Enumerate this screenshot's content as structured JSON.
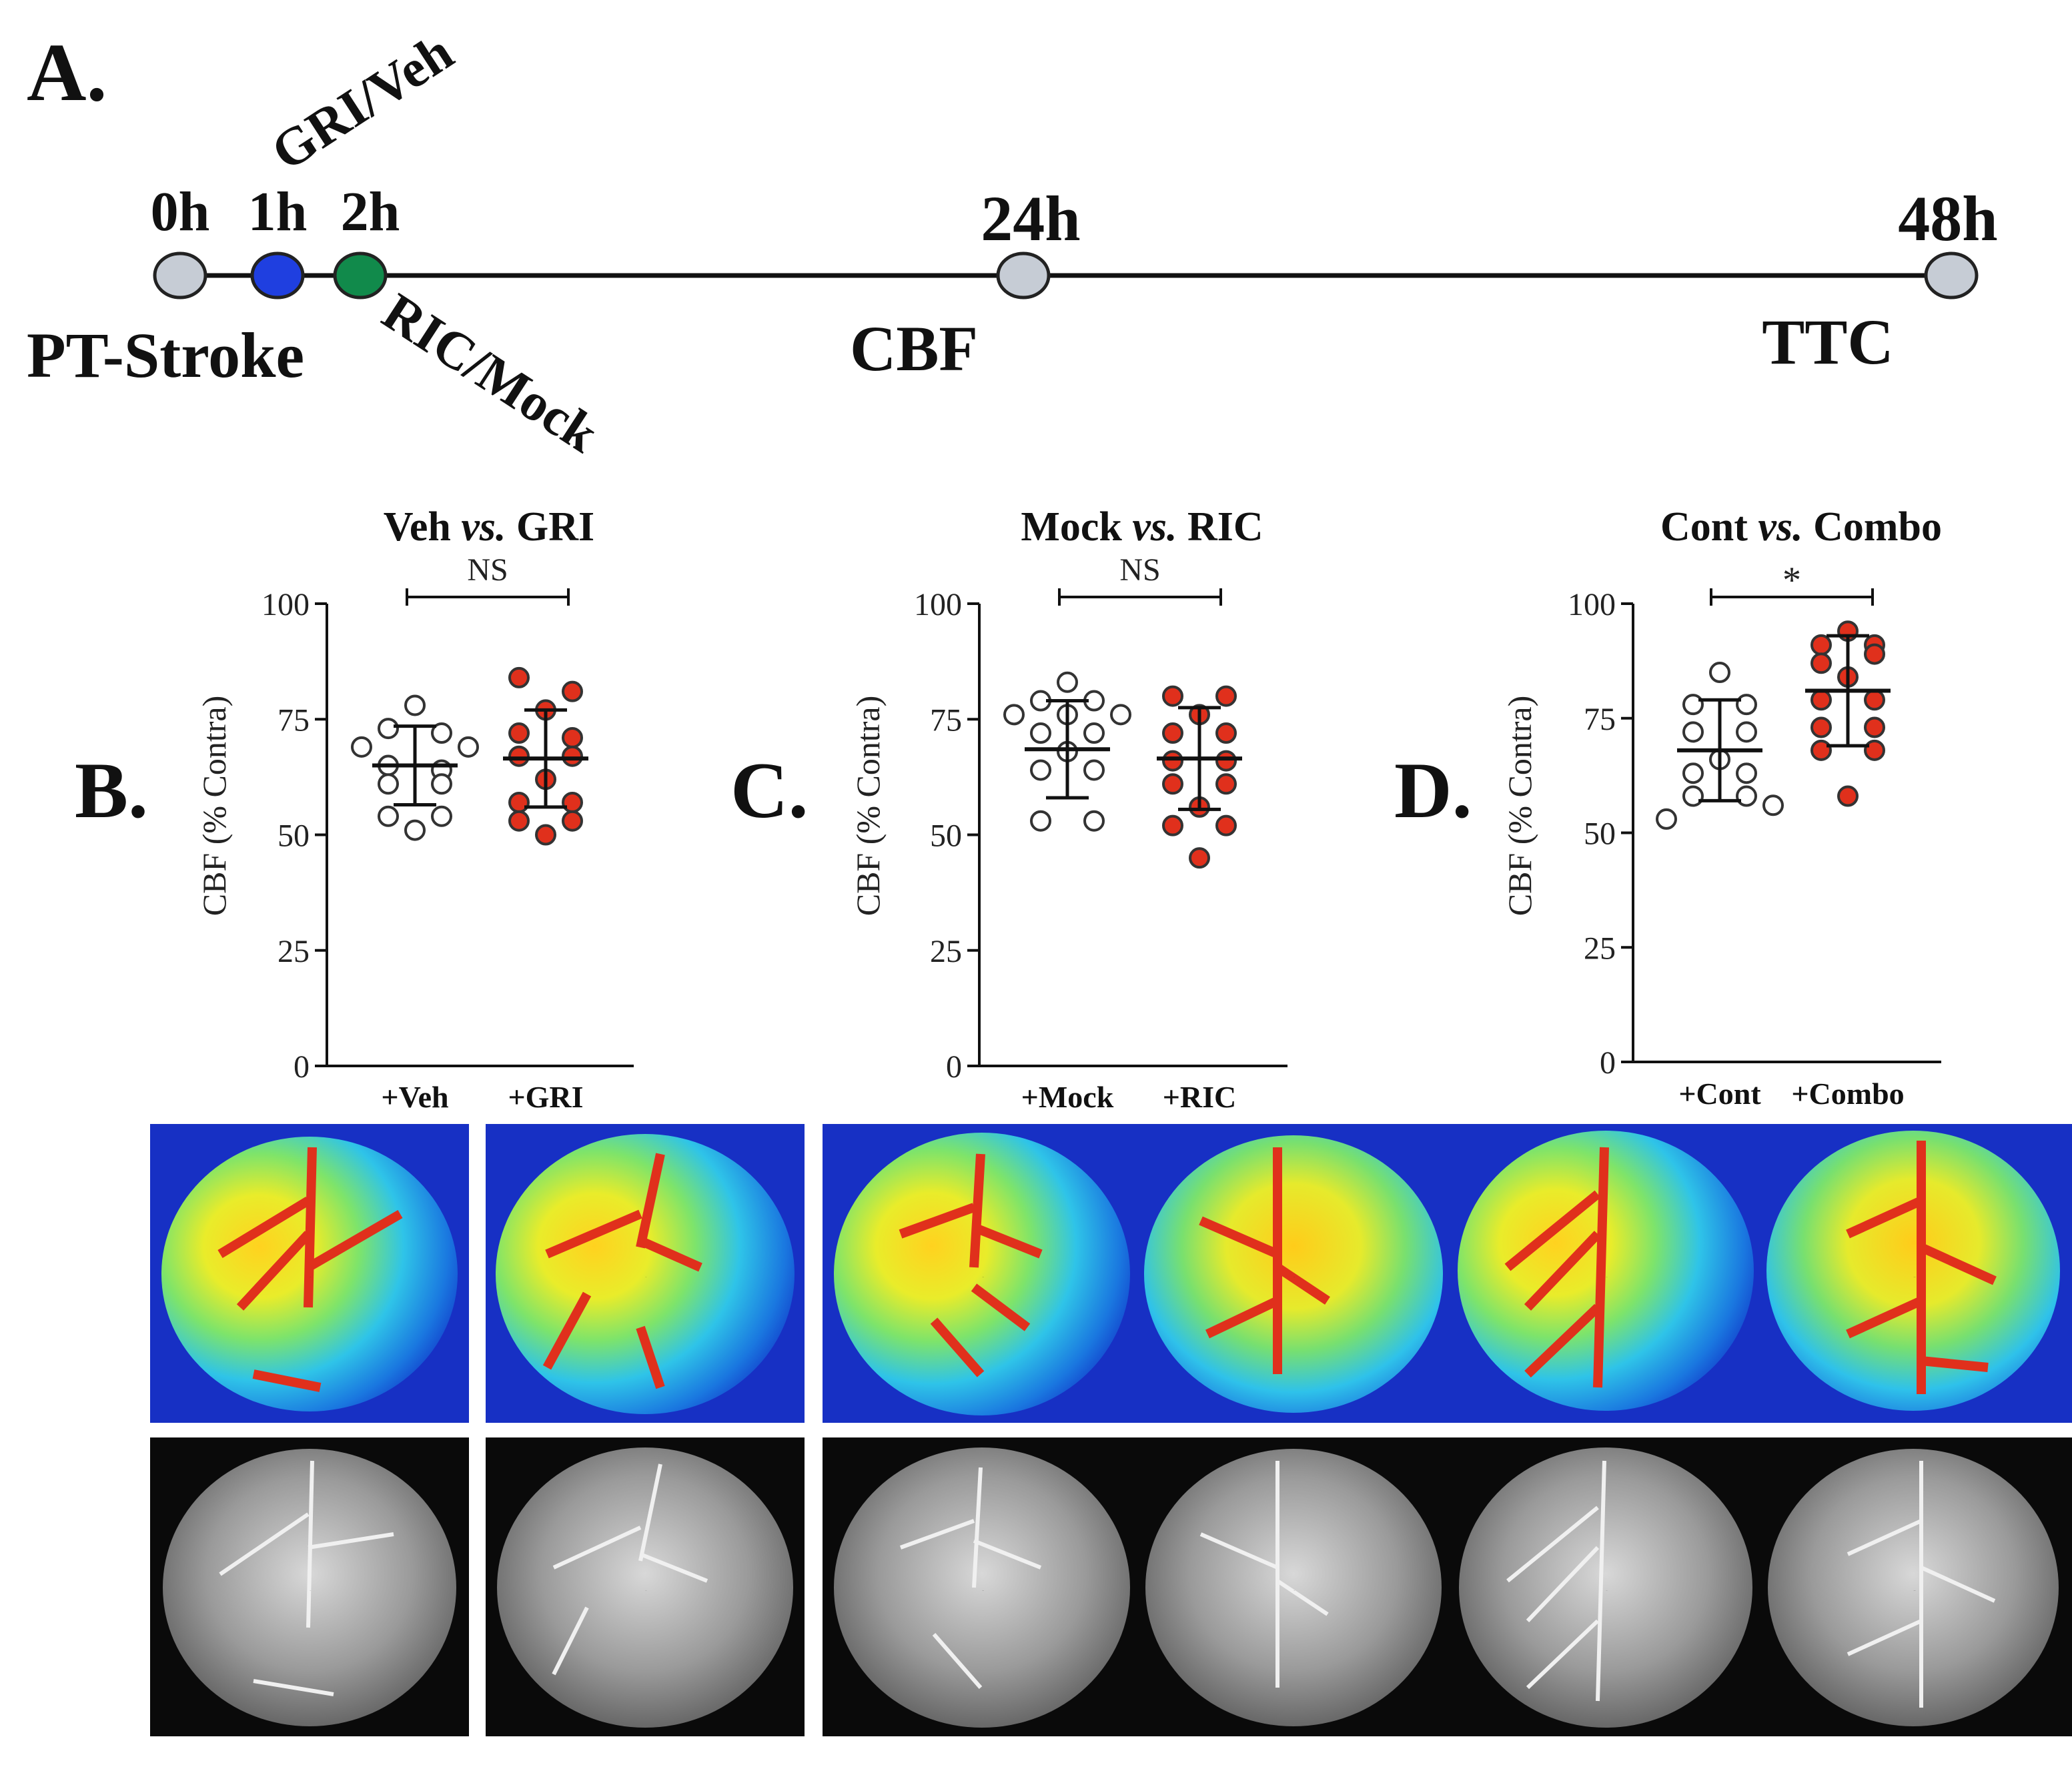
{
  "timeline": {
    "panel_label": "A.",
    "points": [
      {
        "time": "0h",
        "bottom": "PT-Stroke",
        "color": "#c6ccd5",
        "time_color": "#111111"
      },
      {
        "time": "1h",
        "bottom": "",
        "color": "#1f3fe0",
        "time_color": "#1f3fe0"
      },
      {
        "time": "2h",
        "bottom": "",
        "color": "#118a4b",
        "time_color": "#118a4b"
      },
      {
        "time": "24h",
        "bottom": "CBF",
        "color": "#c6ccd5",
        "time_color": "#111111"
      },
      {
        "time": "48h",
        "bottom": "TTC",
        "color": "#c6ccd5",
        "time_color": "#111111"
      }
    ],
    "treatment_1": {
      "label": "GRI/Veh",
      "color": "#1f3fe0"
    },
    "treatment_2": {
      "label": "RIC/Mock",
      "color": "#118a4b"
    }
  },
  "colors": {
    "control": "#ffffff",
    "treated": "#e0301c",
    "stroke": "#333333"
  },
  "chart_data": [
    {
      "type": "scatter",
      "panel_label": "B.",
      "title": "Veh vs. GRI",
      "title_parts": [
        "Veh ",
        "vs.",
        " GRI"
      ],
      "ylabel": "CBF (% Contra)",
      "ylim": [
        0,
        100
      ],
      "yticks": [
        0,
        25,
        50,
        75,
        100
      ],
      "significance": "NS",
      "categories": [
        "+Veh",
        "+GRI"
      ],
      "series": [
        {
          "name": "+Veh",
          "style": "open",
          "mean": 65,
          "sd": 8.5,
          "points": [
            [
              0,
              78
            ],
            [
              -1,
              73
            ],
            [
              1,
              72
            ],
            [
              -2,
              69
            ],
            [
              2,
              69
            ],
            [
              -1,
              65
            ],
            [
              1,
              64
            ],
            [
              -1,
              61
            ],
            [
              1,
              61
            ],
            [
              -1,
              54
            ],
            [
              1,
              54
            ],
            [
              0,
              51
            ]
          ]
        },
        {
          "name": "+GRI",
          "style": "filled",
          "mean": 66.5,
          "sd": 10.5,
          "points": [
            [
              -1,
              84
            ],
            [
              1,
              81
            ],
            [
              0,
              77
            ],
            [
              -1,
              72
            ],
            [
              1,
              71
            ],
            [
              -1,
              67
            ],
            [
              1,
              67
            ],
            [
              0,
              62
            ],
            [
              -1,
              57
            ],
            [
              1,
              57
            ],
            [
              -1,
              53
            ],
            [
              1,
              53
            ],
            [
              0,
              50
            ]
          ]
        }
      ]
    },
    {
      "type": "scatter",
      "panel_label": "C.",
      "title": "Mock vs. RIC",
      "title_parts": [
        "Mock ",
        "vs.",
        " RIC"
      ],
      "ylabel": "CBF (% Contra)",
      "ylim": [
        0,
        100
      ],
      "yticks": [
        0,
        25,
        50,
        75,
        100
      ],
      "significance": "NS",
      "categories": [
        "+Mock",
        "+RIC"
      ],
      "series": [
        {
          "name": "+Mock",
          "style": "open",
          "mean": 68.5,
          "sd": 10.5,
          "points": [
            [
              0,
              83
            ],
            [
              -1,
              79
            ],
            [
              1,
              79
            ],
            [
              -2,
              76
            ],
            [
              0,
              76
            ],
            [
              2,
              76
            ],
            [
              -1,
              72
            ],
            [
              1,
              72
            ],
            [
              0,
              68
            ],
            [
              -1,
              64
            ],
            [
              1,
              64
            ],
            [
              -1,
              53
            ],
            [
              1,
              53
            ]
          ]
        },
        {
          "name": "+RIC",
          "style": "filled",
          "mean": 66.5,
          "sd": 11,
          "points": [
            [
              -1,
              80
            ],
            [
              1,
              80
            ],
            [
              0,
              76
            ],
            [
              -1,
              72
            ],
            [
              1,
              72
            ],
            [
              -1,
              66
            ],
            [
              1,
              66
            ],
            [
              -1,
              61
            ],
            [
              1,
              61
            ],
            [
              0,
              56
            ],
            [
              -1,
              52
            ],
            [
              1,
              52
            ],
            [
              0,
              45
            ]
          ]
        }
      ]
    },
    {
      "type": "scatter",
      "panel_label": "D.",
      "title": "Cont vs. Combo",
      "title_parts": [
        "Cont ",
        "vs.",
        " Combo"
      ],
      "ylabel": "CBF (% Contra)",
      "ylim": [
        0,
        100
      ],
      "yticks": [
        0,
        25,
        50,
        75,
        100
      ],
      "significance": "*",
      "categories": [
        "+Cont",
        "+Combo"
      ],
      "series": [
        {
          "name": "+Cont",
          "style": "open",
          "mean": 68,
          "sd": 11,
          "points": [
            [
              0,
              85
            ],
            [
              -1,
              78
            ],
            [
              1,
              78
            ],
            [
              -1,
              72
            ],
            [
              1,
              72
            ],
            [
              0,
              66
            ],
            [
              -1,
              63
            ],
            [
              1,
              63
            ],
            [
              -1,
              58
            ],
            [
              1,
              58
            ],
            [
              -2,
              53
            ],
            [
              2,
              56
            ]
          ]
        },
        {
          "name": "+Combo",
          "style": "filled",
          "mean": 81,
          "sd": 12,
          "points": [
            [
              0,
              94
            ],
            [
              -1,
              91
            ],
            [
              1,
              91
            ],
            [
              -1,
              87
            ],
            [
              1,
              89
            ],
            [
              0,
              84
            ],
            [
              -1,
              79
            ],
            [
              1,
              79
            ],
            [
              -1,
              73
            ],
            [
              1,
              73
            ],
            [
              -1,
              68
            ],
            [
              1,
              68
            ],
            [
              0,
              58
            ]
          ]
        }
      ]
    }
  ],
  "images": {
    "cbf_maps": [
      "+Veh",
      "+GRI",
      "+Mock",
      "+RIC",
      "+Cont",
      "+Combo"
    ],
    "grayscale": [
      "+Veh",
      "+GRI",
      "+Mock",
      "+RIC",
      "+Cont",
      "+Combo"
    ]
  }
}
